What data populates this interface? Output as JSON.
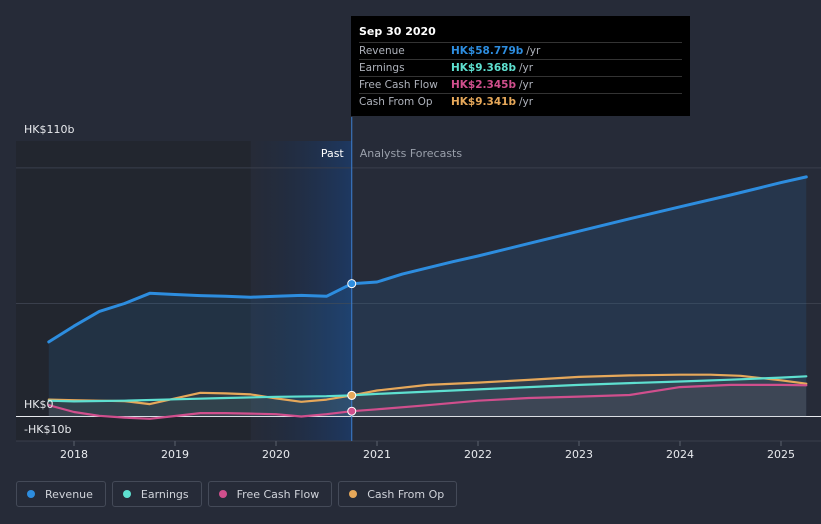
{
  "chart_data": {
    "type": "line",
    "title": "",
    "xlabel": "",
    "ylabel": "",
    "ylim": [
      -10,
      110
    ],
    "x_ticks": [
      2018,
      2019,
      2020,
      2021,
      2022,
      2023,
      2024,
      2025
    ],
    "x_tick_labels": [
      "2018",
      "2019",
      "2020",
      "2021",
      "2022",
      "2023",
      "2024",
      "2025"
    ],
    "y_labels": {
      "top": "HK$110b",
      "zero": "HK$0",
      "bottom": "-HK$10b"
    },
    "divider_x": 2020.75,
    "past_label": "Past",
    "forecast_label": "Analysts Forecasts",
    "series": [
      {
        "name": "Revenue",
        "color": "#2d8ddf",
        "x": [
          2017.75,
          2018.0,
          2018.25,
          2018.5,
          2018.75,
          2019.0,
          2019.25,
          2019.5,
          2019.75,
          2020.0,
          2020.25,
          2020.5,
          2020.75,
          2021.0,
          2021.25,
          2021.75,
          2022.0,
          2022.5,
          2023.0,
          2023.5,
          2024.0,
          2024.5,
          2025.0,
          2025.25
        ],
        "values": [
          33.0,
          40.0,
          46.5,
          50.0,
          54.5,
          54.0,
          53.5,
          53.2,
          52.8,
          53.2,
          53.6,
          53.2,
          58.779,
          59.5,
          63.0,
          68.5,
          71.0,
          76.5,
          82.0,
          87.5,
          92.8,
          98.0,
          103.5,
          106.0
        ]
      },
      {
        "name": "Earnings",
        "color": "#5ee0d0",
        "x": [
          2017.75,
          2018.0,
          2018.5,
          2019.0,
          2019.5,
          2020.0,
          2020.5,
          2020.75,
          2021.0,
          2021.5,
          2022.0,
          2022.5,
          2023.0,
          2023.5,
          2024.0,
          2024.5,
          2025.0,
          2025.25
        ],
        "values": [
          7.0,
          6.7,
          7.0,
          7.6,
          8.2,
          8.7,
          9.0,
          9.368,
          10.0,
          11.0,
          12.0,
          13.0,
          14.0,
          14.8,
          15.5,
          16.3,
          17.2,
          17.8
        ]
      },
      {
        "name": "Free Cash Flow",
        "color": "#d04f8d",
        "x": [
          2017.75,
          2018.0,
          2018.25,
          2018.5,
          2018.75,
          2019.0,
          2019.25,
          2019.5,
          2019.75,
          2020.0,
          2020.25,
          2020.5,
          2020.75,
          2021.0,
          2021.5,
          2022.0,
          2022.5,
          2023.0,
          2023.5,
          2024.0,
          2024.5,
          2025.0,
          2025.25
        ],
        "values": [
          5.0,
          2.0,
          0.3,
          -0.5,
          -1.0,
          0.2,
          1.5,
          1.5,
          1.3,
          1.0,
          0.0,
          1.0,
          2.345,
          3.2,
          5.0,
          7.0,
          8.2,
          8.8,
          9.5,
          13.0,
          14.0,
          14.0,
          13.8
        ]
      },
      {
        "name": "Cash From Op",
        "color": "#e6a85a",
        "x": [
          2017.75,
          2018.0,
          2018.25,
          2018.5,
          2018.75,
          2019.0,
          2019.25,
          2019.5,
          2019.75,
          2020.0,
          2020.25,
          2020.5,
          2020.75,
          2021.0,
          2021.5,
          2022.0,
          2022.5,
          2023.0,
          2023.5,
          2024.0,
          2024.3,
          2024.6,
          2025.0,
          2025.25
        ],
        "values": [
          7.5,
          7.2,
          7.0,
          6.8,
          5.5,
          8.0,
          10.5,
          10.2,
          9.8,
          8.0,
          6.5,
          7.5,
          9.341,
          11.5,
          14.0,
          15.0,
          16.2,
          17.5,
          18.2,
          18.5,
          18.5,
          18.0,
          16.0,
          14.5
        ]
      }
    ],
    "highlight": {
      "x": 2020.75
    }
  },
  "tooltip": {
    "date": "Sep 30 2020",
    "rows": [
      {
        "label": "Revenue",
        "value": "HK$58.779b",
        "unit": "/yr",
        "color": "#2d8ddf"
      },
      {
        "label": "Earnings",
        "value": "HK$9.368b",
        "unit": "/yr",
        "color": "#5ee0d0"
      },
      {
        "label": "Free Cash Flow",
        "value": "HK$2.345b",
        "unit": "/yr",
        "color": "#d04f8d"
      },
      {
        "label": "Cash From Op",
        "value": "HK$9.341b",
        "unit": "/yr",
        "color": "#e6a85a"
      }
    ]
  },
  "legend": [
    {
      "label": "Revenue",
      "color": "#2d8ddf"
    },
    {
      "label": "Earnings",
      "color": "#5ee0d0"
    },
    {
      "label": "Free Cash Flow",
      "color": "#d04f8d"
    },
    {
      "label": "Cash From Op",
      "color": "#e6a85a"
    }
  ]
}
